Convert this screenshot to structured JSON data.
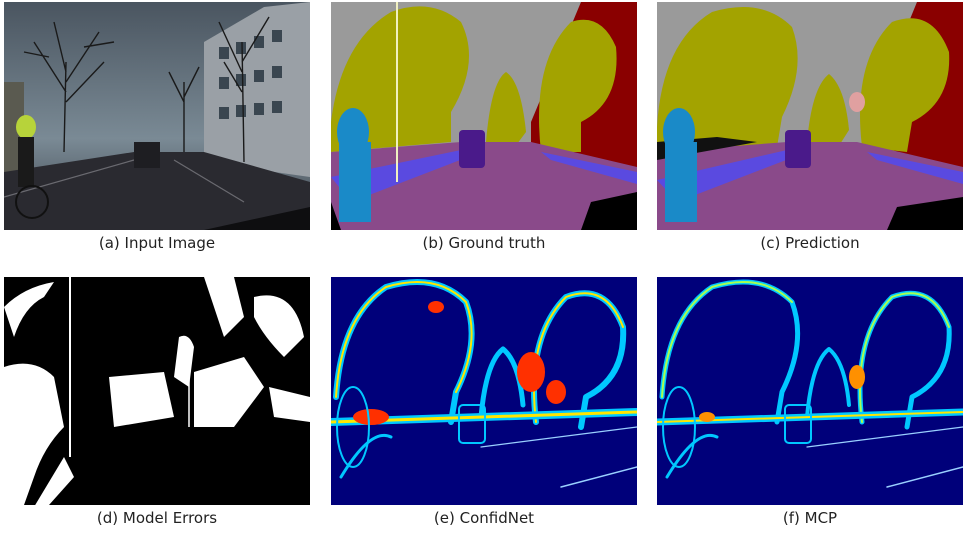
{
  "panels": [
    {
      "caption": "(a) Input Image"
    },
    {
      "caption": "(b) Ground truth"
    },
    {
      "caption": "(c) Prediction"
    },
    {
      "caption": "(d) Model Errors"
    },
    {
      "caption": "(e) ConfidNet"
    },
    {
      "caption": "(f) MCP"
    }
  ],
  "colors": {
    "sky": "#9a9a9a",
    "tree": "#a3a300",
    "road": "#8a4a8a",
    "sidewalk": "#5a4ae0",
    "building": "#8a0000",
    "person": "#1a8ac8",
    "car": "#4a1a8a",
    "heat_low": "#00007a",
    "heat_mid": "#00c8ff",
    "heat_high": "#ff3000"
  }
}
